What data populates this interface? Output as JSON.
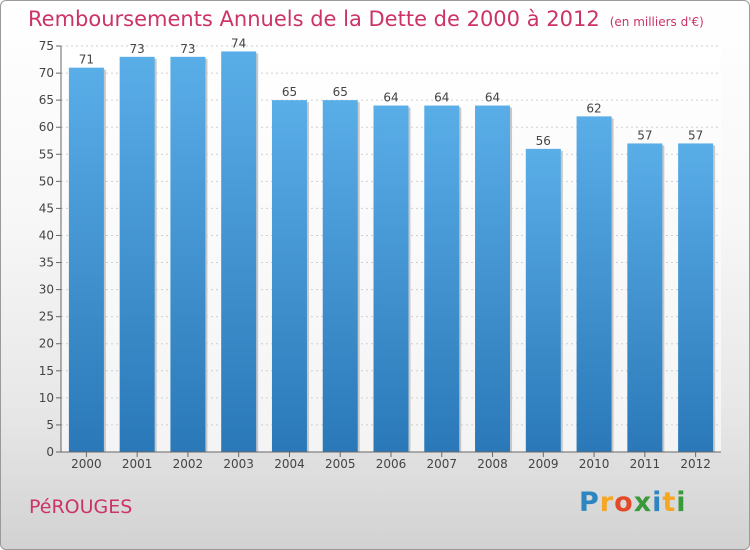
{
  "header": {
    "title": "Remboursements Annuels de la Dette de 2000 à 2012",
    "unit": "(en milliers d'€)"
  },
  "footer": {
    "town": "PéROUGES",
    "brand": "Proxiti",
    "brand_letters": [
      {
        "char": "P",
        "color": "#2e86c1"
      },
      {
        "char": "r",
        "color": "#f5a623"
      },
      {
        "char": "o",
        "color": "#e24a2a"
      },
      {
        "char": "x",
        "color": "#3a9a3a"
      },
      {
        "char": "i",
        "color": "#2e86c1"
      },
      {
        "char": "t",
        "color": "#f5a623"
      },
      {
        "char": "i",
        "color": "#3a9a3a"
      }
    ]
  },
  "chart_data": {
    "type": "bar",
    "title": "Remboursements Annuels de la Dette de 2000 à 2012",
    "categories": [
      "2000",
      "2001",
      "2002",
      "2003",
      "2004",
      "2005",
      "2006",
      "2007",
      "2008",
      "2009",
      "2010",
      "2011",
      "2012"
    ],
    "values": [
      71,
      73,
      73,
      74,
      65,
      65,
      64,
      64,
      64,
      56,
      62,
      57,
      57
    ],
    "ylim": [
      0,
      75
    ],
    "yticks": [
      0,
      5,
      10,
      15,
      20,
      25,
      30,
      35,
      40,
      45,
      50,
      55,
      60,
      65,
      70,
      75
    ],
    "grid": true,
    "bar_color_top": "#5aaee8",
    "bar_color_bottom": "#2a78b8"
  }
}
